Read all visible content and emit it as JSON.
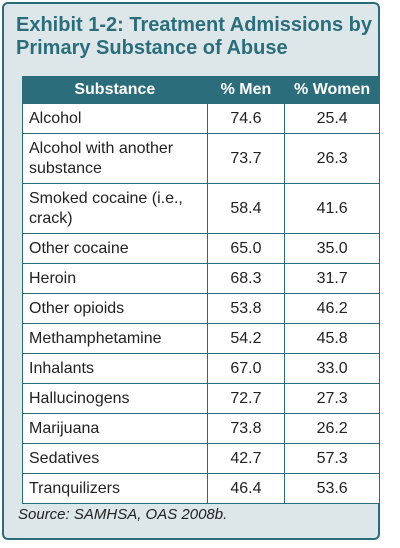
{
  "title": "Exhibit 1-2: Treatment Admissions by Primary Substance of Abuse",
  "table": {
    "headers": [
      "Substance",
      "% Men",
      "% Women"
    ],
    "rows": [
      {
        "substance": "Alcohol",
        "men": "74.6",
        "women": "25.4"
      },
      {
        "substance": "Alcohol with another substance",
        "men": "73.7",
        "women": "26.3"
      },
      {
        "substance": "Smoked cocaine (i.e., crack)",
        "men": "58.4",
        "women": "41.6"
      },
      {
        "substance": "Other cocaine",
        "men": "65.0",
        "women": "35.0"
      },
      {
        "substance": "Heroin",
        "men": "68.3",
        "women": "31.7"
      },
      {
        "substance": "Other opioids",
        "men": "53.8",
        "women": "46.2"
      },
      {
        "substance": "Methamphetamine",
        "men": "54.2",
        "women": "45.8"
      },
      {
        "substance": "Inhalants",
        "men": "67.0",
        "women": "33.0"
      },
      {
        "substance": "Hallucinogens",
        "men": "72.7",
        "women": "27.3"
      },
      {
        "substance": "Marijuana",
        "men": "73.8",
        "women": "26.2"
      },
      {
        "substance": "Sedatives",
        "men": "42.7",
        "women": "57.3"
      },
      {
        "substance": "Tranquilizers",
        "men": "46.4",
        "women": "53.6"
      }
    ]
  },
  "source": "Source: SAMHSA, OAS 2008b.",
  "colors": {
    "accent": "#2b6d7b",
    "panel_background": "#dde7ea"
  }
}
